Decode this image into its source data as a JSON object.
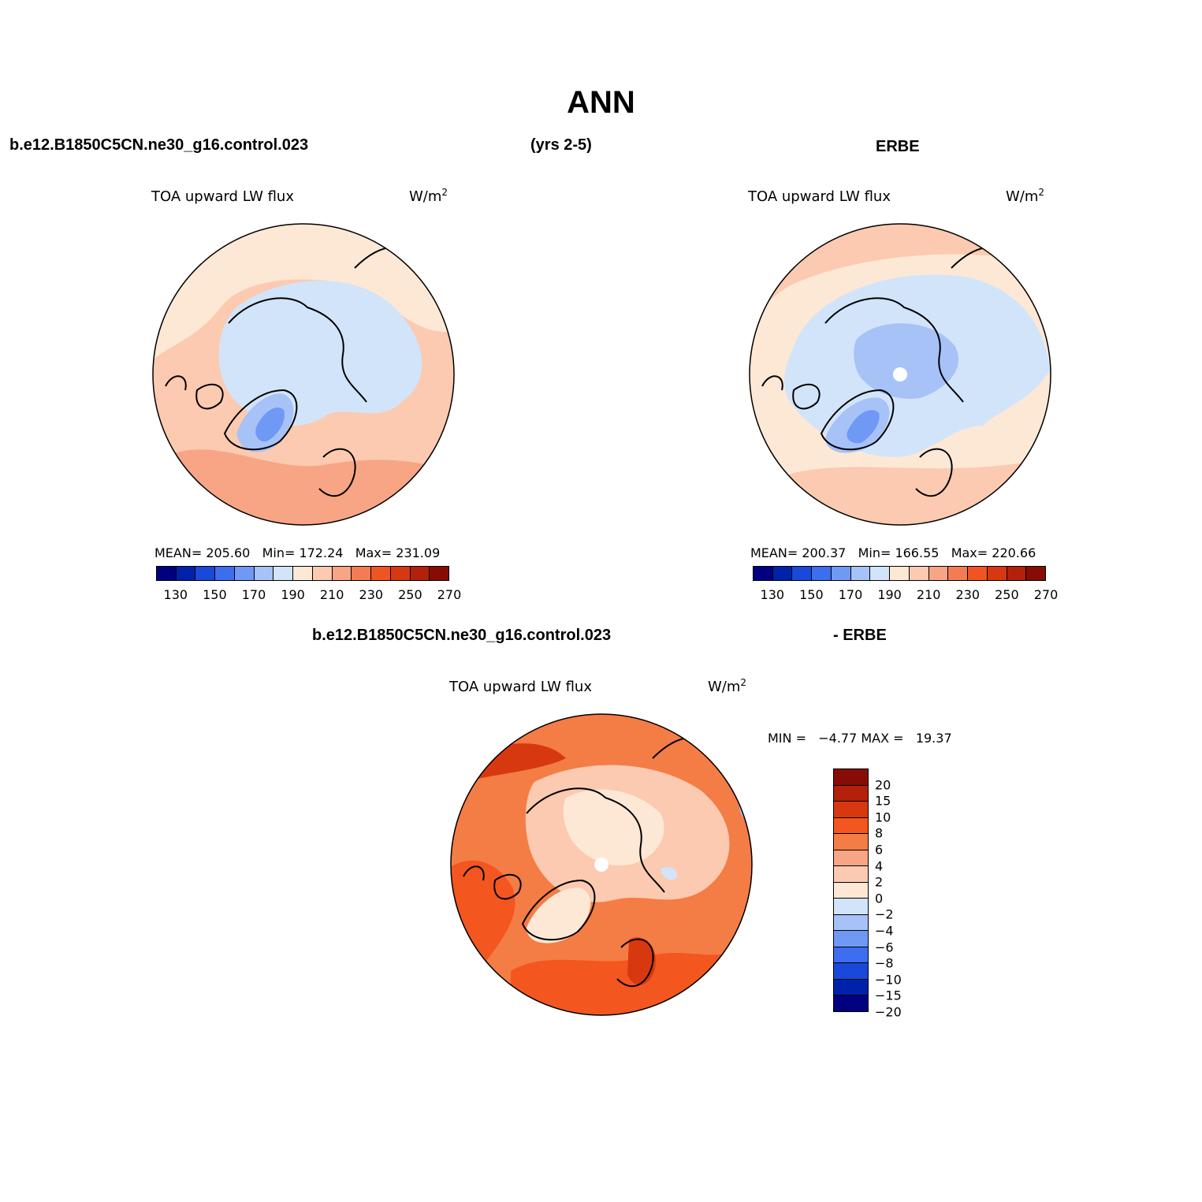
{
  "title": "ANN",
  "header": {
    "case_name": "b.e12.B1850C5CN.ne30_g16.control.023",
    "years": "(yrs 2-5)",
    "obs_name": "ERBE"
  },
  "panels": [
    {
      "id": "model",
      "variable": "TOA upward LW flux",
      "units_base": "W/m",
      "units_exp": "2",
      "stats": "MEAN= 205.60   Min= 172.24   Max= 231.09"
    },
    {
      "id": "obs",
      "variable": "TOA upward LW flux",
      "units_base": "W/m",
      "units_exp": "2",
      "stats": "MEAN= 200.37   Min= 166.55   Max= 220.66"
    },
    {
      "id": "diff",
      "title_left": "b.e12.B1850C5CN.ne30_g16.control.023",
      "title_right": "- ERBE",
      "variable": "TOA upward LW flux",
      "units_base": "W/m",
      "units_exp": "2",
      "stats": "MIN =   −4.77 MAX =   19.37"
    }
  ],
  "colorbar_abs": {
    "labels": [
      "130",
      "150",
      "170",
      "190",
      "210",
      "230",
      "250",
      "270"
    ],
    "colors": [
      "#000080",
      "#0022aa",
      "#1a48d9",
      "#3d6ef0",
      "#6f99f5",
      "#a6c2f7",
      "#d2e4fa",
      "#fde8d6",
      "#fbcab0",
      "#f7a585",
      "#f47c55",
      "#ef5523",
      "#d8380f",
      "#b3210a",
      "#850d05"
    ]
  },
  "colorbar_diff": {
    "labels": [
      "20",
      "15",
      "10",
      "8",
      "6",
      "4",
      "2",
      "0",
      "−2",
      "−4",
      "−6",
      "−8",
      "−10",
      "−15",
      "−20"
    ],
    "colors": [
      "#850d05",
      "#b3210a",
      "#d8380f",
      "#f4561f",
      "#f47c45",
      "#f7a585",
      "#fbcab0",
      "#fde8d6",
      "#d2e4fa",
      "#a6c2f7",
      "#6f99f5",
      "#3d6ef0",
      "#1a48d9",
      "#0022aa",
      "#000080"
    ]
  }
}
